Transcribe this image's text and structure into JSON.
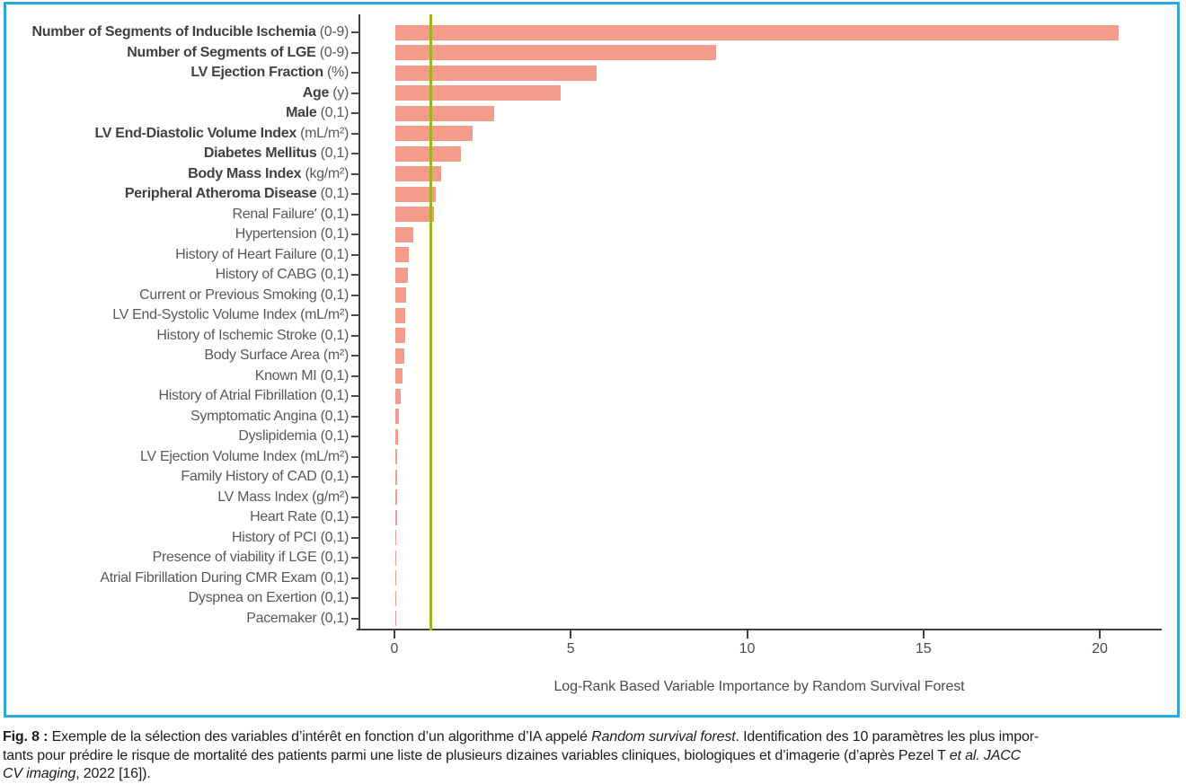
{
  "figure": {
    "frame_color": "#2CA8DF",
    "bar_color": "#F39C8B",
    "reference_line_color": "#9DB61F",
    "axis_color": "#3F4143",
    "label_color": "#58595B",
    "bold_label_color": "#414042"
  },
  "chart_data": {
    "type": "bar",
    "orientation": "horizontal",
    "title": "",
    "xlabel": "Log-Rank Based Variable Importance by Random Survival Forest",
    "ylabel": "",
    "xlim": [
      0,
      21.7
    ],
    "x_ticks": [
      0,
      5,
      10,
      15,
      20
    ],
    "grid": false,
    "legend": "none",
    "reference_line_x": 1.0,
    "categories": [
      {
        "name": "Number of Segments of Inducible Ischemia",
        "unit": "(0-9)",
        "bold": true,
        "value": 20.5
      },
      {
        "name": "Number of Segments of LGE",
        "unit": "(0-9)",
        "bold": true,
        "value": 9.1
      },
      {
        "name": "LV Ejection Fraction",
        "unit": "(%)",
        "bold": true,
        "value": 5.7
      },
      {
        "name": "Age",
        "unit": "(y)",
        "bold": true,
        "value": 4.7
      },
      {
        "name": "Male",
        "unit": "(0,1)",
        "bold": true,
        "value": 2.8
      },
      {
        "name": "LV End-Diastolic Volume Index",
        "unit": "(mL/m²)",
        "bold": true,
        "value": 2.2
      },
      {
        "name": "Diabetes Mellitus",
        "unit": "(0,1)",
        "bold": true,
        "value": 1.85
      },
      {
        "name": "Body Mass Index",
        "unit": "(kg/m²)",
        "bold": true,
        "value": 1.3
      },
      {
        "name": "Peripheral Atheroma Disease",
        "unit": "(0,1)",
        "bold": true,
        "value": 1.15
      },
      {
        "name": "Renal Failure′",
        "unit": "(0,1)",
        "bold": false,
        "value": 1.1
      },
      {
        "name": "Hypertension",
        "unit": "(0,1)",
        "bold": false,
        "value": 0.5
      },
      {
        "name": "History of Heart Failure",
        "unit": "(0,1)",
        "bold": false,
        "value": 0.37
      },
      {
        "name": "History of CABG",
        "unit": "(0,1)",
        "bold": false,
        "value": 0.35
      },
      {
        "name": "Current or Previous Smoking",
        "unit": "(0,1)",
        "bold": false,
        "value": 0.31
      },
      {
        "name": "LV End-Systolic Volume Index",
        "unit": "(mL/m²)",
        "bold": false,
        "value": 0.29
      },
      {
        "name": "History of Ischemic Stroke",
        "unit": "(0,1)",
        "bold": false,
        "value": 0.27
      },
      {
        "name": "Body Surface Area",
        "unit": "(m²)",
        "bold": false,
        "value": 0.25
      },
      {
        "name": "Known MI",
        "unit": "(0,1)",
        "bold": false,
        "value": 0.2
      },
      {
        "name": "History of Atrial Fibrillation",
        "unit": "(0,1)",
        "bold": false,
        "value": 0.15
      },
      {
        "name": "Symptomatic Angina",
        "unit": "(0,1)",
        "bold": false,
        "value": 0.1
      },
      {
        "name": "Dyslipidemia",
        "unit": "(0,1)",
        "bold": false,
        "value": 0.07
      },
      {
        "name": "LV Ejection Volume Index",
        "unit": "(mL/m²)",
        "bold": false,
        "value": 0.06
      },
      {
        "name": "Family History of CAD",
        "unit": "(0,1)",
        "bold": false,
        "value": 0.05
      },
      {
        "name": "LV Mass Index",
        "unit": "(g/m²)",
        "bold": false,
        "value": 0.05
      },
      {
        "name": "Heart Rate",
        "unit": "(0,1)",
        "bold": false,
        "value": 0.04
      },
      {
        "name": "History of PCI",
        "unit": "(0,1)",
        "bold": false,
        "value": 0.03
      },
      {
        "name": "Presence of viability if LGE",
        "unit": "(0,1)",
        "bold": false,
        "value": 0.03
      },
      {
        "name": "Atrial Fibrillation During CMR Exam",
        "unit": "(0,1)",
        "bold": false,
        "value": 0.03
      },
      {
        "name": "Dyspnea on Exertion",
        "unit": "(0,1)",
        "bold": false,
        "value": 0.03
      },
      {
        "name": "Pacemaker",
        "unit": "(0,1)",
        "bold": false,
        "value": 0.02
      }
    ]
  },
  "caption": {
    "lines": [
      [
        {
          "text": "Fig. 8 : ",
          "style": "bold"
        },
        {
          "text": "Exemple de la sélection des variables d’intérêt en fonction d’un algorithme d’IA appelé ",
          "style": "normal"
        },
        {
          "text": "Random survival forest",
          "style": "italic"
        },
        {
          "text": ". Identification des 10 paramètres les plus impor-",
          "style": "normal"
        }
      ],
      [
        {
          "text": "tants pour prédire le risque de mortalité des patients parmi une liste de plusieurs dizaines variables cliniques, biologiques et d’imagerie (d’après Pezel T ",
          "style": "normal"
        },
        {
          "text": "et al. JACC",
          "style": "italic"
        }
      ],
      [
        {
          "text": "CV imaging",
          "style": "italic"
        },
        {
          "text": ", 2022 [16]).",
          "style": "normal"
        }
      ]
    ]
  }
}
